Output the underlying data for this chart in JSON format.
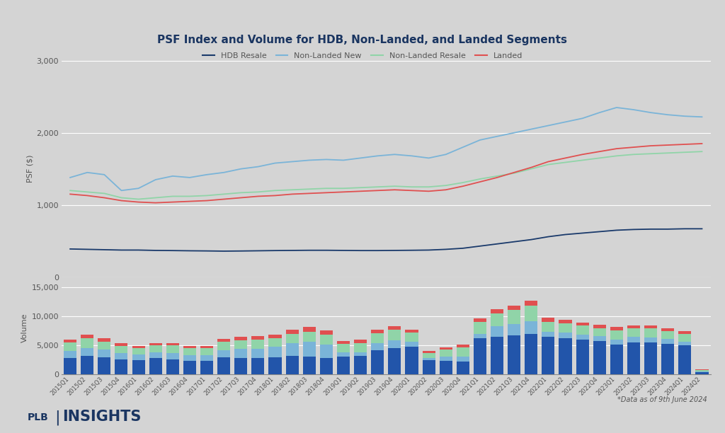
{
  "title": "PSF Index and Volume for HDB, Non-Landed, and Landed Segments",
  "background_color": "#d4d4d4",
  "quarters": [
    "2015Q1",
    "2015Q2",
    "2015Q3",
    "2015Q4",
    "2016Q1",
    "2016Q2",
    "2016Q3",
    "2016Q4",
    "2017Q1",
    "2017Q2",
    "2017Q3",
    "2017Q4",
    "2018Q1",
    "2018Q2",
    "2018Q3",
    "2018Q4",
    "2019Q1",
    "2019Q2",
    "2019Q3",
    "2019Q4",
    "2020Q1",
    "2020Q2",
    "2020Q3",
    "2020Q4",
    "2021Q1",
    "2021Q2",
    "2021Q3",
    "2021Q4",
    "2022Q1",
    "2022Q2",
    "2022Q3",
    "2022Q4",
    "2023Q1",
    "2023Q2",
    "2023Q3",
    "2023Q4",
    "2024Q1",
    "2024Q2"
  ],
  "hdb_resale_psf": [
    390,
    385,
    380,
    375,
    375,
    370,
    368,
    365,
    363,
    360,
    362,
    365,
    368,
    370,
    372,
    372,
    370,
    368,
    368,
    370,
    372,
    375,
    385,
    400,
    430,
    460,
    490,
    520,
    560,
    590,
    610,
    630,
    650,
    660,
    665,
    665,
    670,
    670
  ],
  "non_landed_new_psf": [
    1380,
    1450,
    1420,
    1200,
    1230,
    1350,
    1400,
    1380,
    1420,
    1450,
    1500,
    1530,
    1580,
    1600,
    1620,
    1630,
    1620,
    1650,
    1680,
    1700,
    1680,
    1650,
    1700,
    1800,
    1900,
    1950,
    2000,
    2050,
    2100,
    2150,
    2200,
    2280,
    2350,
    2320,
    2280,
    2250,
    2230,
    2220
  ],
  "non_landed_resale_psf": [
    1200,
    1180,
    1160,
    1100,
    1080,
    1100,
    1120,
    1120,
    1130,
    1150,
    1170,
    1180,
    1200,
    1210,
    1220,
    1230,
    1230,
    1240,
    1250,
    1260,
    1250,
    1250,
    1270,
    1310,
    1360,
    1400,
    1440,
    1500,
    1560,
    1590,
    1620,
    1650,
    1680,
    1700,
    1710,
    1720,
    1730,
    1740
  ],
  "landed_psf": [
    1150,
    1130,
    1100,
    1060,
    1040,
    1030,
    1040,
    1050,
    1060,
    1080,
    1100,
    1120,
    1130,
    1150,
    1160,
    1170,
    1180,
    1190,
    1200,
    1210,
    1200,
    1190,
    1210,
    1260,
    1320,
    1380,
    1450,
    1520,
    1600,
    1650,
    1700,
    1740,
    1780,
    1800,
    1820,
    1830,
    1840,
    1850
  ],
  "hdb_vol": [
    2800,
    3200,
    3000,
    2600,
    2500,
    2800,
    2600,
    2400,
    2300,
    3000,
    2900,
    2800,
    3000,
    3200,
    3100,
    2900,
    3100,
    3200,
    4200,
    4500,
    4800,
    2500,
    2300,
    2200,
    6200,
    6500,
    6700,
    7000,
    6500,
    6200,
    6000,
    5800,
    5200,
    5500,
    5500,
    5300,
    5000,
    400
  ],
  "non_landed_new_vol": [
    1200,
    1400,
    1300,
    1100,
    900,
    1000,
    1100,
    900,
    1000,
    1200,
    1500,
    1600,
    1800,
    2200,
    2500,
    2200,
    700,
    600,
    1200,
    1400,
    900,
    400,
    800,
    900,
    800,
    1800,
    2000,
    2200,
    800,
    1000,
    900,
    800,
    800,
    1000,
    900,
    800,
    600,
    100
  ],
  "non_landed_resale_vol": [
    1500,
    1600,
    1400,
    1200,
    1100,
    1200,
    1300,
    1200,
    1200,
    1400,
    1500,
    1600,
    1500,
    1600,
    1800,
    1800,
    1500,
    1600,
    1700,
    1800,
    1500,
    800,
    1200,
    1600,
    2000,
    2200,
    2400,
    2600,
    1800,
    1600,
    1500,
    1400,
    1600,
    1400,
    1500,
    1400,
    1400,
    300
  ],
  "landed_vol": [
    500,
    600,
    550,
    450,
    400,
    450,
    430,
    400,
    420,
    500,
    550,
    600,
    600,
    700,
    800,
    700,
    500,
    550,
    600,
    650,
    500,
    300,
    350,
    450,
    600,
    700,
    800,
    900,
    700,
    600,
    550,
    500,
    550,
    500,
    500,
    480,
    450,
    80
  ],
  "line_colors": {
    "hdb_resale": "#1a3a6b",
    "non_landed_new": "#7ab4d8",
    "non_landed_resale": "#90d4a8",
    "landed": "#e05050"
  },
  "bar_colors": {
    "hdb_vol": "#2255aa",
    "non_landed_new_vol": "#7ab4d8",
    "non_landed_resale_vol": "#90d4a8",
    "landed_vol": "#e05050"
  },
  "psf_ylim": [
    0,
    3000
  ],
  "psf_yticks": [
    0,
    1000,
    2000,
    3000
  ],
  "vol_ylim": [
    0,
    16000
  ],
  "vol_yticks": [
    0,
    5000,
    10000,
    15000
  ],
  "ylabel_psf": "PSF ($)",
  "ylabel_vol": "Volume",
  "footnote": "*Data as of 9th June 2024"
}
